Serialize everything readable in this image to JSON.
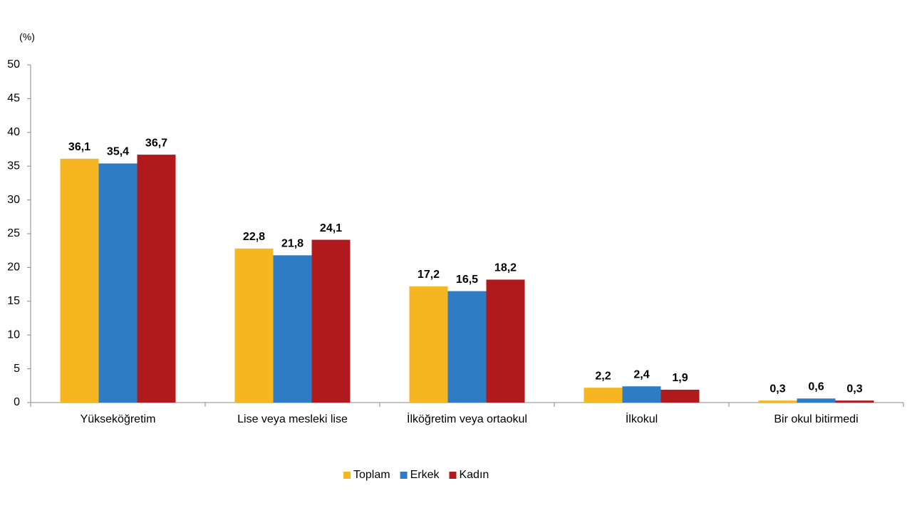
{
  "chart_data": {
    "type": "bar",
    "y_label": "(%)",
    "categories": [
      "Yükseköğretim",
      "Lise veya mesleki lise",
      "İlköğretim veya ortaokul",
      "İlkokul",
      "Bir okul bitirmedi"
    ],
    "series": [
      {
        "name": "Toplam",
        "color": "#f5b622",
        "values": [
          36.1,
          22.8,
          17.2,
          2.2,
          0.3
        ],
        "value_labels": [
          "36,1",
          "22,8",
          "17,2",
          "2,2",
          "0,3"
        ]
      },
      {
        "name": "Erkek",
        "color": "#2d7cc4",
        "values": [
          35.4,
          21.8,
          16.5,
          2.4,
          0.6
        ],
        "value_labels": [
          "35,4",
          "21,8",
          "16,5",
          "2,4",
          "0,6"
        ]
      },
      {
        "name": "Kadın",
        "color": "#b01a1c",
        "values": [
          36.7,
          24.1,
          18.2,
          1.9,
          0.3
        ],
        "value_labels": [
          "36,7",
          "24,1",
          "18,2",
          "1,9",
          "0,3"
        ]
      }
    ],
    "ylim": [
      0,
      50
    ],
    "yticks": [
      0,
      5,
      10,
      15,
      20,
      25,
      30,
      35,
      40,
      45,
      50
    ],
    "grid": false,
    "legend": "bottom"
  }
}
